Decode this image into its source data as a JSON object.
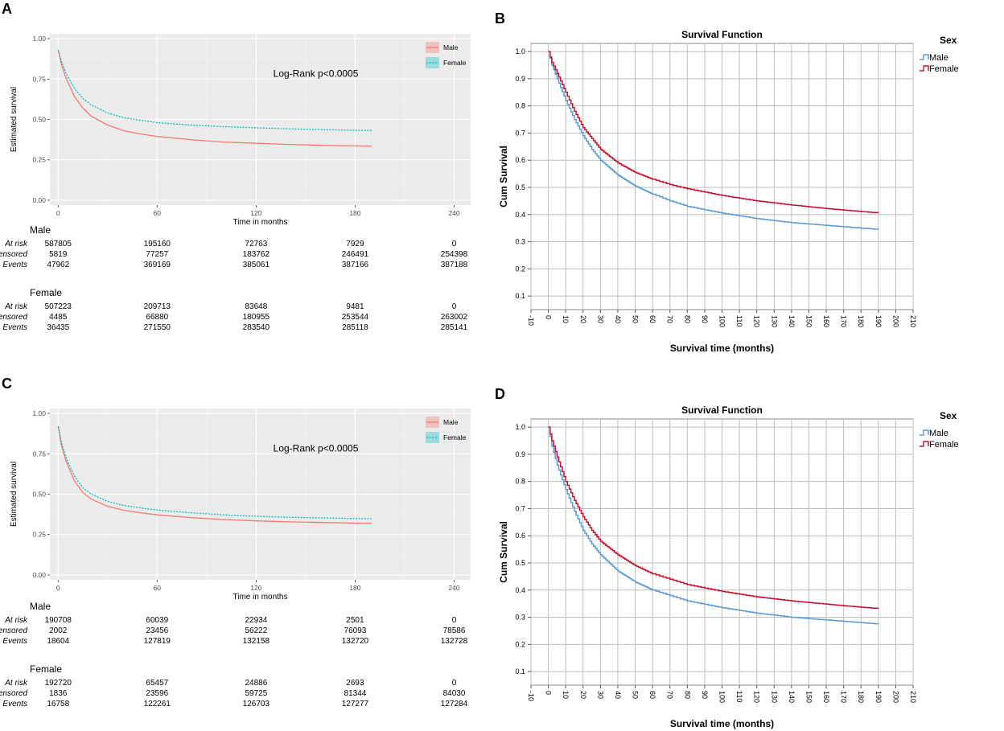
{
  "chart_data": [
    {
      "panel_label": "A",
      "type": "line",
      "title": "",
      "xlabel": "Time in months",
      "ylabel": "Estimated survival",
      "xlim": [
        -5,
        250
      ],
      "ylim": [
        -0.03,
        1.03
      ],
      "xticks": [
        "0",
        "60",
        "120",
        "180",
        "240"
      ],
      "xtick_values": [
        0,
        60,
        120,
        180,
        240
      ],
      "yticks": [
        "0.00",
        "0.25",
        "0.50",
        "0.75",
        "1.00"
      ],
      "ytick_values": [
        0,
        0.25,
        0.5,
        0.75,
        1.0
      ],
      "annotation": "Log-Rank p<0.0005",
      "legend_position": "top-right",
      "colors": {
        "Male": "#F8766D",
        "Female": "#00BFC4"
      },
      "series": [
        {
          "name": "Male",
          "style": "solid",
          "x": [
            0,
            2,
            5,
            10,
            15,
            20,
            30,
            40,
            50,
            60,
            80,
            100,
            120,
            140,
            160,
            180,
            190
          ],
          "y": [
            0.93,
            0.84,
            0.75,
            0.64,
            0.57,
            0.52,
            0.465,
            0.43,
            0.41,
            0.395,
            0.375,
            0.36,
            0.352,
            0.345,
            0.34,
            0.336,
            0.335
          ]
        },
        {
          "name": "Female",
          "style": "dotted",
          "x": [
            0,
            2,
            5,
            10,
            15,
            20,
            30,
            40,
            50,
            60,
            80,
            100,
            120,
            140,
            160,
            180,
            190
          ],
          "y": [
            0.93,
            0.86,
            0.78,
            0.69,
            0.63,
            0.59,
            0.54,
            0.51,
            0.495,
            0.48,
            0.465,
            0.455,
            0.448,
            0.442,
            0.437,
            0.433,
            0.432
          ]
        }
      ],
      "risk_table": {
        "groups": [
          {
            "name": "Male",
            "rows": [
              {
                "label": "At risk",
                "values": [
                  "587805",
                  "195160",
                  "72763",
                  "7929",
                  "0"
                ]
              },
              {
                "label": "Censored",
                "values": [
                  "5819",
                  "77257",
                  "183762",
                  "246491",
                  "254398"
                ]
              },
              {
                "label": "Events",
                "values": [
                  "47962",
                  "369169",
                  "385061",
                  "387166",
                  "387188"
                ]
              }
            ]
          },
          {
            "name": "Female",
            "rows": [
              {
                "label": "At risk",
                "values": [
                  "507223",
                  "209713",
                  "83648",
                  "9481",
                  "0"
                ]
              },
              {
                "label": "Censored",
                "values": [
                  "4485",
                  "66880",
                  "180955",
                  "253544",
                  "263002"
                ]
              },
              {
                "label": "Events",
                "values": [
                  "36435",
                  "271550",
                  "283540",
                  "285118",
                  "285141"
                ]
              }
            ]
          }
        ]
      }
    },
    {
      "panel_label": "B",
      "type": "line",
      "title": "Survival Function",
      "xlabel": "Survival time (months)",
      "ylabel": "Cum Survival",
      "xlim": [
        -10,
        210
      ],
      "ylim": [
        0.05,
        1.03
      ],
      "xticks": [
        "-10",
        "0",
        "10",
        "20",
        "30",
        "40",
        "50",
        "60",
        "70",
        "80",
        "90",
        "100",
        "110",
        "120",
        "130",
        "140",
        "150",
        "160",
        "170",
        "180",
        "190",
        "200",
        "210"
      ],
      "yticks": [
        "0.1",
        "0.2",
        "0.3",
        "0.4",
        "0.5",
        "0.6",
        "0.7",
        "0.8",
        "0.9",
        "1.0"
      ],
      "legend_title": "Sex",
      "legend_position": "right",
      "colors": {
        "Male": "#5B9BD5",
        "Female": "#C8102E"
      },
      "series": [
        {
          "name": "Male",
          "x": [
            0,
            2,
            5,
            10,
            15,
            20,
            25,
            30,
            40,
            50,
            60,
            70,
            80,
            100,
            120,
            140,
            160,
            180,
            190
          ],
          "y": [
            1.0,
            0.95,
            0.9,
            0.82,
            0.75,
            0.69,
            0.64,
            0.6,
            0.545,
            0.505,
            0.475,
            0.45,
            0.43,
            0.405,
            0.385,
            0.37,
            0.36,
            0.35,
            0.345
          ]
        },
        {
          "name": "Female",
          "x": [
            0,
            2,
            5,
            10,
            15,
            20,
            25,
            30,
            40,
            50,
            60,
            70,
            80,
            100,
            120,
            140,
            160,
            180,
            190
          ],
          "y": [
            1.0,
            0.96,
            0.92,
            0.85,
            0.78,
            0.72,
            0.68,
            0.64,
            0.59,
            0.555,
            0.53,
            0.51,
            0.495,
            0.47,
            0.45,
            0.435,
            0.422,
            0.411,
            0.406
          ]
        }
      ]
    },
    {
      "panel_label": "C",
      "type": "line",
      "title": "",
      "xlabel": "Time in months",
      "ylabel": "Estimated survival",
      "xlim": [
        -5,
        250
      ],
      "ylim": [
        -0.03,
        1.03
      ],
      "xticks": [
        "0",
        "60",
        "120",
        "180",
        "240"
      ],
      "xtick_values": [
        0,
        60,
        120,
        180,
        240
      ],
      "yticks": [
        "0.00",
        "0.25",
        "0.50",
        "0.75",
        "1.00"
      ],
      "ytick_values": [
        0,
        0.25,
        0.5,
        0.75,
        1.0
      ],
      "annotation": "Log-Rank p<0.0005",
      "legend_position": "top-right",
      "colors": {
        "Male": "#F8766D",
        "Female": "#00BFC4"
      },
      "series": [
        {
          "name": "Male",
          "style": "solid",
          "x": [
            0,
            2,
            5,
            10,
            15,
            20,
            30,
            40,
            50,
            60,
            80,
            100,
            120,
            140,
            160,
            180,
            190
          ],
          "y": [
            0.92,
            0.8,
            0.7,
            0.58,
            0.51,
            0.47,
            0.425,
            0.4,
            0.385,
            0.372,
            0.355,
            0.343,
            0.335,
            0.329,
            0.325,
            0.321,
            0.32
          ]
        },
        {
          "name": "Female",
          "style": "dotted",
          "x": [
            0,
            2,
            5,
            10,
            15,
            20,
            30,
            40,
            50,
            60,
            80,
            100,
            120,
            140,
            160,
            180,
            190
          ],
          "y": [
            0.92,
            0.82,
            0.72,
            0.61,
            0.54,
            0.5,
            0.455,
            0.43,
            0.415,
            0.402,
            0.385,
            0.372,
            0.363,
            0.357,
            0.353,
            0.349,
            0.348
          ]
        }
      ],
      "risk_table": {
        "groups": [
          {
            "name": "Male",
            "rows": [
              {
                "label": "At risk",
                "values": [
                  "190708",
                  "60039",
                  "22934",
                  "2501",
                  "0"
                ]
              },
              {
                "label": "Censored",
                "values": [
                  "2002",
                  "23456",
                  "56222",
                  "76093",
                  "78586"
                ]
              },
              {
                "label": "Events",
                "values": [
                  "18604",
                  "127819",
                  "132158",
                  "132720",
                  "132728"
                ]
              }
            ]
          },
          {
            "name": "Female",
            "rows": [
              {
                "label": "At risk",
                "values": [
                  "192720",
                  "65457",
                  "24886",
                  "2693",
                  "0"
                ]
              },
              {
                "label": "Censored",
                "values": [
                  "1836",
                  "23596",
                  "59725",
                  "81344",
                  "84030"
                ]
              },
              {
                "label": "Events",
                "values": [
                  "16758",
                  "122261",
                  "126703",
                  "127277",
                  "127284"
                ]
              }
            ]
          }
        ]
      }
    },
    {
      "panel_label": "D",
      "type": "line",
      "title": "Survival Function",
      "xlabel": "Survival time (months)",
      "ylabel": "Cum Survival",
      "xlim": [
        -10,
        210
      ],
      "ylim": [
        0.05,
        1.03
      ],
      "xticks": [
        "-10",
        "0",
        "10",
        "20",
        "30",
        "40",
        "50",
        "60",
        "70",
        "80",
        "90",
        "100",
        "110",
        "120",
        "130",
        "140",
        "150",
        "160",
        "170",
        "180",
        "190",
        "200",
        "210"
      ],
      "yticks": [
        "0.1",
        "0.2",
        "0.3",
        "0.4",
        "0.5",
        "0.6",
        "0.7",
        "0.8",
        "0.9",
        "1.0"
      ],
      "legend_title": "Sex",
      "legend_position": "right",
      "colors": {
        "Male": "#5B9BD5",
        "Female": "#C8102E"
      },
      "series": [
        {
          "name": "Male",
          "x": [
            0,
            2,
            5,
            10,
            15,
            20,
            25,
            30,
            40,
            50,
            60,
            70,
            80,
            100,
            120,
            140,
            160,
            180,
            190
          ],
          "y": [
            1.0,
            0.93,
            0.86,
            0.77,
            0.69,
            0.62,
            0.57,
            0.53,
            0.47,
            0.43,
            0.4,
            0.38,
            0.36,
            0.335,
            0.315,
            0.3,
            0.29,
            0.28,
            0.275
          ]
        },
        {
          "name": "Female",
          "x": [
            0,
            2,
            5,
            10,
            15,
            20,
            25,
            30,
            40,
            50,
            60,
            70,
            80,
            100,
            120,
            140,
            160,
            180,
            190
          ],
          "y": [
            1.0,
            0.95,
            0.89,
            0.8,
            0.73,
            0.67,
            0.62,
            0.58,
            0.53,
            0.49,
            0.46,
            0.44,
            0.42,
            0.395,
            0.375,
            0.36,
            0.348,
            0.337,
            0.332
          ]
        }
      ]
    }
  ]
}
